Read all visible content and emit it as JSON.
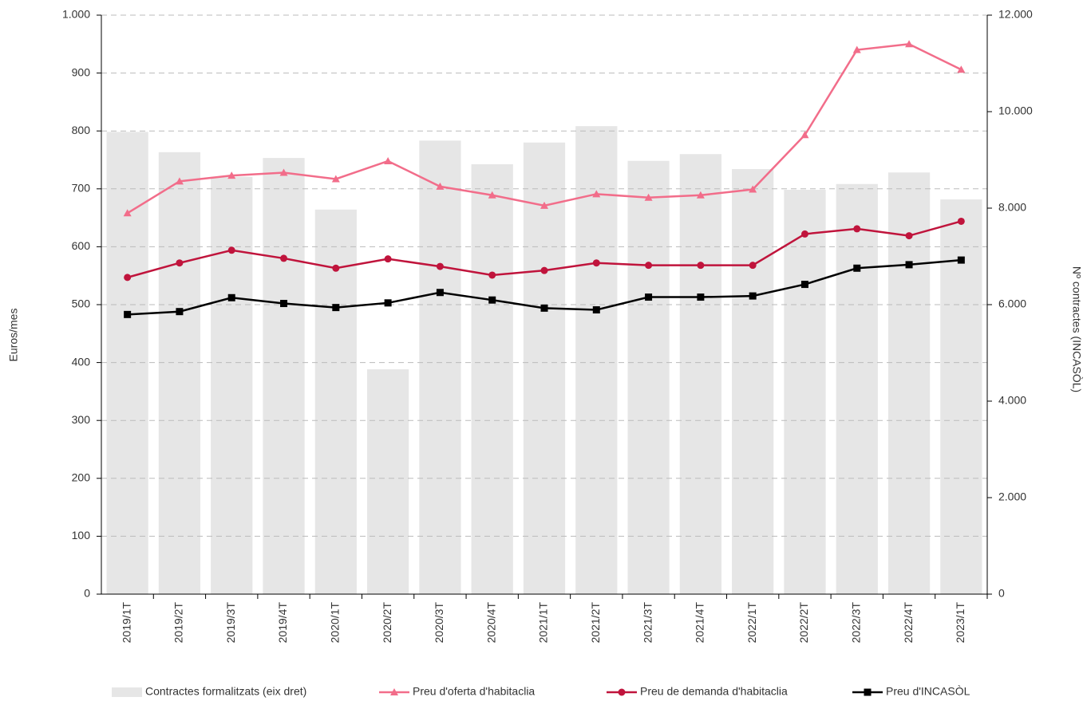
{
  "chart_data": {
    "type": "combo",
    "y_label": "Euros/mes",
    "y2_label": "Nº contractes (INCASÒL)",
    "categories": [
      "2019/1T",
      "2019/2T",
      "2019/3T",
      "2019/4T",
      "2020/1T",
      "2020/2T",
      "2020/3T",
      "2020/4T",
      "2021/1T",
      "2021/2T",
      "2021/3T",
      "2021/4T",
      "2022/1T",
      "2022/2T",
      "2022/3T",
      "2022/4T",
      "2023/1T"
    ],
    "ylim": [
      0,
      1000
    ],
    "yticks": [
      0,
      100,
      200,
      300,
      400,
      500,
      600,
      700,
      800,
      900,
      {
        "value": 1000,
        "label": "1.000"
      }
    ],
    "y2lim": [
      0,
      12000
    ],
    "y2ticks": [
      0,
      {
        "value": 2000,
        "label": "2.000"
      },
      {
        "value": 4000,
        "label": "4.000"
      },
      {
        "value": 6000,
        "label": "6.000"
      },
      {
        "value": 8000,
        "label": "8.000"
      },
      {
        "value": 10000,
        "label": "10.000"
      },
      {
        "value": 12000,
        "label": "12.000"
      }
    ],
    "grid": true,
    "legend": "bottom",
    "series": [
      {
        "name": "Contractes formalitzats (eix dret)",
        "type": "bar",
        "axis": "y2",
        "color": "#e6e6e6",
        "values": [
          9580,
          9160,
          8650,
          9040,
          7970,
          4660,
          9400,
          8910,
          9360,
          9700,
          8980,
          9120,
          8810,
          8380,
          8500,
          8740,
          8180
        ]
      },
      {
        "name": "Preu d'oferta d'habitaclia",
        "type": "line",
        "marker": "triangle",
        "color": "#f26d8a",
        "values": [
          658,
          713,
          723,
          728,
          717,
          748,
          704,
          689,
          671,
          691,
          685,
          689,
          699,
          793,
          940,
          950,
          906
        ]
      },
      {
        "name": "Preu de demanda d'habitaclia",
        "type": "line",
        "marker": "circle",
        "color": "#c0143c",
        "values": [
          547,
          572,
          594,
          580,
          563,
          579,
          566,
          551,
          559,
          572,
          568,
          568,
          568,
          622,
          631,
          619,
          644
        ]
      },
      {
        "name": "Preu d'INCASÒL",
        "type": "line",
        "marker": "square",
        "color": "#000000",
        "values": [
          483,
          488,
          512,
          502,
          495,
          503,
          521,
          508,
          494,
          491,
          513,
          513,
          515,
          535,
          563,
          569,
          577
        ]
      }
    ]
  }
}
